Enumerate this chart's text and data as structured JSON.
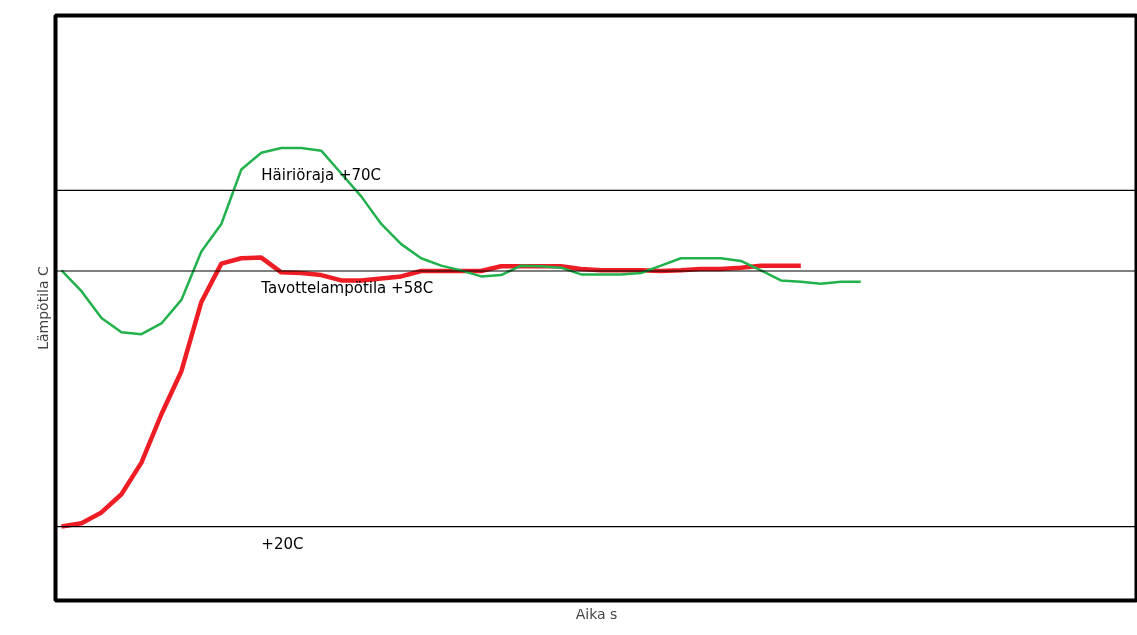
{
  "chart_data": {
    "type": "line",
    "xlabel": "Aika s",
    "ylabel": "Lämpötila C",
    "categories": [
      null,
      null,
      null,
      null,
      null,
      null,
      null,
      null,
      null,
      null,
      null,
      null,
      null,
      null,
      null,
      null,
      null,
      null,
      null,
      null,
      null,
      null,
      null,
      null,
      null,
      null,
      null,
      null,
      null,
      null,
      null,
      null,
      null,
      null,
      null,
      null,
      null,
      null,
      null,
      null,
      null,
      null,
      null,
      null,
      null,
      null,
      null,
      null,
      null,
      null,
      null,
      null,
      null,
      null
    ],
    "series": [
      {
        "color": "#ee1c24",
        "values": [
          20.0,
          20.5,
          22.1,
          24.8,
          29.5,
          36.7,
          43.1,
          53.4,
          59.1,
          59.9,
          60.0,
          57.8,
          57.7,
          57.4,
          56.6,
          56.6,
          56.9,
          57.2,
          58.0,
          58.0,
          58.0,
          58.0,
          58.7,
          58.7,
          58.7,
          58.7,
          58.3,
          58.1,
          58.1,
          58.1,
          58.0,
          58.1,
          58.3,
          58.3,
          58.5,
          58.8,
          58.8,
          58.8,
          null,
          null,
          null,
          null,
          null,
          null,
          null,
          null,
          null,
          null,
          null,
          null,
          null,
          null,
          null,
          null
        ]
      },
      {
        "color": "#22b14c",
        "values": [
          58.1,
          55.0,
          51.0,
          48.9,
          48.6,
          50.2,
          53.7,
          60.9,
          65.0,
          73.1,
          75.6,
          76.3,
          76.3,
          75.9,
          72.5,
          69.1,
          65.0,
          62.0,
          59.9,
          58.8,
          58.1,
          57.2,
          57.4,
          58.8,
          58.7,
          58.5,
          57.5,
          57.5,
          57.5,
          57.7,
          58.8,
          59.9,
          59.9,
          59.9,
          59.5,
          58.1,
          56.6,
          56.4,
          56.1,
          56.4,
          56.4,
          null,
          null,
          null,
          null,
          null,
          null,
          null,
          null,
          null,
          null,
          null,
          null,
          null
        ]
      }
    ],
    "ylim": [
      9,
      96
    ],
    "marker": "none",
    "line_style": "solid",
    "ref_lines": [
      {
        "axis": "y",
        "value": 70,
        "label": "Häiriöraja +70C",
        "color": "#000000"
      },
      {
        "axis": "y",
        "value": 58,
        "label": "Tavottelampötila +58C",
        "color": "#000000"
      },
      {
        "axis": "y",
        "value": 20,
        "label": "+20C",
        "color": "#000000"
      }
    ]
  }
}
